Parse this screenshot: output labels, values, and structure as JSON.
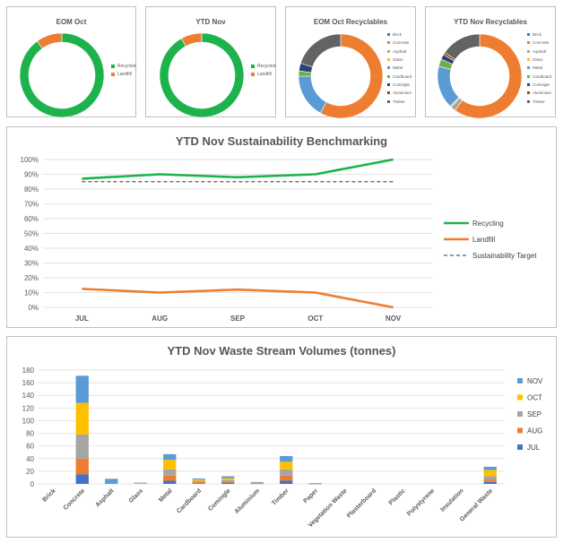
{
  "colors": {
    "recycled": "#1eb24c",
    "landfill": "#ed7d31",
    "recyclables": [
      "#4472c4",
      "#ed7d31",
      "#a5a5a5",
      "#ffc000",
      "#5b9bd5",
      "#70ad47",
      "#264478",
      "#9e480e",
      "#636363"
    ],
    "months": {
      "JUL": "#4472c4",
      "AUG": "#ed7d31",
      "SEP": "#a5a5a5",
      "OCT": "#ffc000",
      "NOV": "#5b9bd5"
    },
    "recycling_line": "#1eb24c",
    "landfill_line": "#ed7d31",
    "target_line": "#595959",
    "grid": "#d9d9d9"
  },
  "chart_data": [
    {
      "type": "pie",
      "donut": true,
      "title": "EOM Oct",
      "labels": [
        "Recycled",
        "Landfill"
      ],
      "values": [
        90,
        10
      ]
    },
    {
      "type": "pie",
      "donut": true,
      "title": "YTD Nov",
      "labels": [
        "Recycled",
        "Landfill"
      ],
      "values": [
        92,
        8
      ]
    },
    {
      "type": "pie",
      "donut": true,
      "title": "EOM Oct Recyclables",
      "labels": [
        "Brick",
        "Concrete",
        "Asphalt",
        "Glass",
        "Metal",
        "Cardboard",
        "Comingle",
        "Aluminium",
        "Timber"
      ],
      "values": [
        0,
        58,
        0,
        0,
        17,
        2,
        3,
        0,
        20
      ]
    },
    {
      "type": "pie",
      "donut": true,
      "title": "YTD Nov Recyclables",
      "labels": [
        "Brick",
        "Concrete",
        "Asphalt",
        "Glass",
        "Metal",
        "Cardboard",
        "Comingle",
        "Aluminium",
        "Timber"
      ],
      "values": [
        0,
        62,
        2,
        0.5,
        17,
        3,
        2,
        1,
        16
      ]
    },
    {
      "type": "line",
      "title": "YTD Nov Sustainability Benchmarking",
      "categories": [
        "JUL",
        "AUG",
        "SEP",
        "OCT",
        "NOV"
      ],
      "y_ticks": [
        "0%",
        "10%",
        "20%",
        "30%",
        "40%",
        "50%",
        "60%",
        "70%",
        "80%",
        "90%",
        "100%"
      ],
      "ylim": [
        0,
        100
      ],
      "legend_position": "right",
      "series": [
        {
          "name": "Recycling",
          "values": [
            87,
            90,
            88,
            90,
            100
          ]
        },
        {
          "name": "Landfill",
          "values": [
            12.5,
            10,
            12,
            10,
            0
          ]
        },
        {
          "name": "Sustainability Target",
          "values": [
            85,
            85,
            85,
            85,
            85
          ],
          "dashed": true
        }
      ]
    },
    {
      "type": "bar",
      "stacked": true,
      "title": "YTD Nov Waste Stream Volumes (tonnes)",
      "categories": [
        "Brick",
        "Concrete",
        "Asphalt",
        "Glass",
        "Metal",
        "Cardboard",
        "Comingle",
        "Aluminium",
        "Timber",
        "Paper",
        "Vegetation Waste",
        "Plasterboard",
        "Plastic",
        "Polystyrene",
        "Insulation",
        "General Waste"
      ],
      "y_ticks": [
        "0",
        "20",
        "40",
        "60",
        "80",
        "100",
        "120",
        "140",
        "160",
        "180"
      ],
      "ylim": [
        0,
        180
      ],
      "legend_position": "right",
      "series": [
        {
          "name": "JUL",
          "values": [
            0,
            15,
            0,
            0,
            5,
            1,
            2,
            0.5,
            5,
            0.2,
            0,
            0,
            0,
            0,
            0,
            3
          ]
        },
        {
          "name": "AUG",
          "values": [
            0,
            25,
            0,
            0,
            8,
            2,
            2,
            0.5,
            8,
            0.2,
            0,
            0,
            0,
            0,
            0,
            4
          ]
        },
        {
          "name": "SEP",
          "values": [
            0,
            38,
            0,
            0,
            10,
            2,
            2,
            0.5,
            10,
            0.2,
            0,
            0,
            0,
            0,
            0,
            5
          ]
        },
        {
          "name": "OCT",
          "values": [
            0,
            50,
            0,
            1,
            15,
            2,
            3,
            0.5,
            12,
            0.2,
            0,
            0,
            0,
            0,
            0,
            10
          ]
        },
        {
          "name": "NOV",
          "values": [
            0,
            43,
            8,
            1,
            9,
            1.5,
            3,
            1,
            9,
            0.3,
            0,
            0,
            0,
            0,
            0,
            5
          ]
        }
      ]
    }
  ],
  "donut_legends": {
    "simple": [
      "Recycled",
      "Landfill"
    ],
    "recyclables": [
      "Brick",
      "Concrete",
      "Asphalt",
      "Glass",
      "Metal",
      "Cardboard",
      "Comingle",
      "Aluminium",
      "Timber"
    ]
  }
}
